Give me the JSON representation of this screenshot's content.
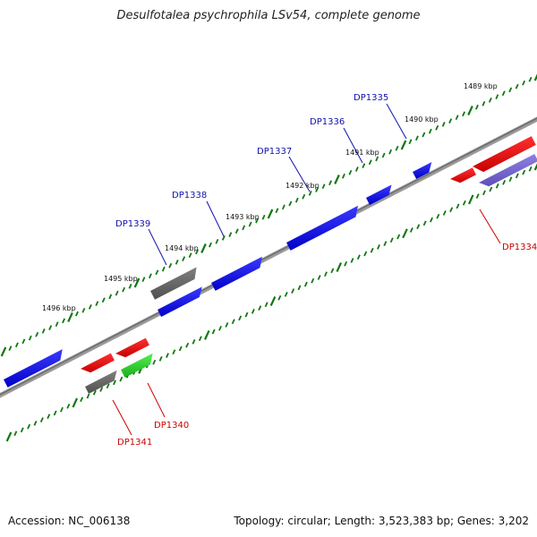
{
  "title": "Desulfotalea psychrophila LSv54, complete genome",
  "footer": {
    "accession": "Accession: NC_006138",
    "summary": "Topology: circular; Length: 3,523,383 bp; Genes: 3,202"
  },
  "kbp_labels": [
    "1489 kbp",
    "1490 kbp",
    "1491 kbp",
    "1492 kbp",
    "1493 kbp",
    "1494 kbp",
    "1495 kbp",
    "1496 kbp"
  ],
  "gene_labels": {
    "DP1335": "DP1335",
    "DP1336": "DP1336",
    "DP1337": "DP1337",
    "DP1338": "DP1338",
    "DP1339": "DP1339",
    "DP1334": "DP1334",
    "DP1340": "DP1340",
    "DP1341": "DP1341"
  },
  "colors": {
    "forward_gene": "#0000ee",
    "reverse_gene": "#ee0000",
    "rna_gene": "#22cc22",
    "pseudo_gene": "#666666",
    "purple_gene": "#7766cc",
    "tick": "#117711",
    "label_blue": "#1010aa",
    "label_red": "#cc0000",
    "backbone": "#888888"
  }
}
